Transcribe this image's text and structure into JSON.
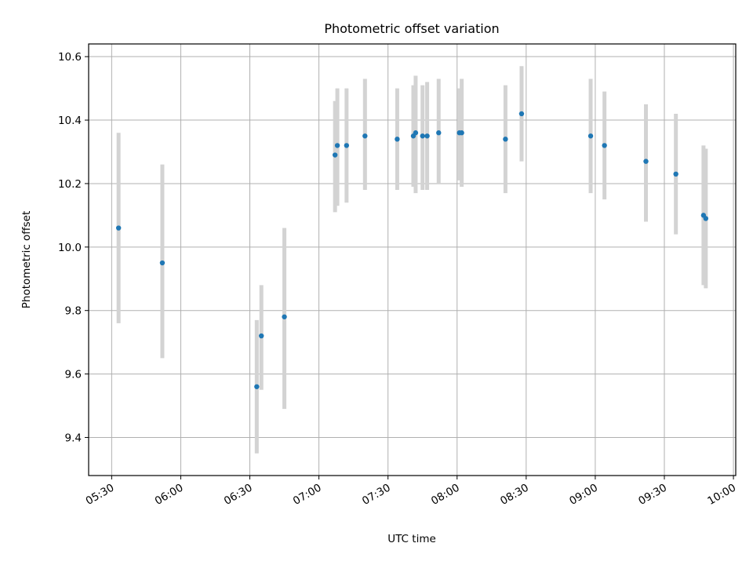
{
  "chart_data": {
    "type": "scatter",
    "title": "Photometric offset variation",
    "xlabel": "UTC time",
    "ylabel": "Photometric offset",
    "xlim": [
      "05:20",
      "10:01"
    ],
    "ylim": [
      9.28,
      10.64
    ],
    "x_ticks": [
      "05:30",
      "06:00",
      "06:30",
      "07:00",
      "07:30",
      "08:00",
      "08:30",
      "09:00",
      "09:30",
      "10:00"
    ],
    "y_ticks": [
      9.4,
      9.6,
      9.8,
      10.0,
      10.2,
      10.4,
      10.6
    ],
    "y_tick_labels": [
      "9.4",
      "9.6",
      "9.8",
      "10.0",
      "10.2",
      "10.4",
      "10.6"
    ],
    "grid": true,
    "colors": {
      "point": "#1f77b4",
      "error_bar": "#d3d3d3",
      "grid": "#b0b0b0"
    },
    "points": [
      {
        "time": "05:33",
        "y": 10.06,
        "yerr_low": 9.76,
        "yerr_high": 10.36
      },
      {
        "time": "05:52",
        "y": 9.95,
        "yerr_low": 9.65,
        "yerr_high": 10.26
      },
      {
        "time": "06:33",
        "y": 9.56,
        "yerr_low": 9.35,
        "yerr_high": 9.77
      },
      {
        "time": "06:35",
        "y": 9.72,
        "yerr_low": 9.55,
        "yerr_high": 9.88
      },
      {
        "time": "06:45",
        "y": 9.78,
        "yerr_low": 9.49,
        "yerr_high": 10.06
      },
      {
        "time": "07:07",
        "y": 10.29,
        "yerr_low": 10.11,
        "yerr_high": 10.46
      },
      {
        "time": "07:08",
        "y": 10.32,
        "yerr_low": 10.13,
        "yerr_high": 10.5
      },
      {
        "time": "07:12",
        "y": 10.32,
        "yerr_low": 10.14,
        "yerr_high": 10.5
      },
      {
        "time": "07:20",
        "y": 10.35,
        "yerr_low": 10.18,
        "yerr_high": 10.53
      },
      {
        "time": "07:34",
        "y": 10.34,
        "yerr_low": 10.18,
        "yerr_high": 10.5
      },
      {
        "time": "07:41",
        "y": 10.35,
        "yerr_low": 10.19,
        "yerr_high": 10.51
      },
      {
        "time": "07:42",
        "y": 10.36,
        "yerr_low": 10.17,
        "yerr_high": 10.54
      },
      {
        "time": "07:45",
        "y": 10.35,
        "yerr_low": 10.18,
        "yerr_high": 10.51
      },
      {
        "time": "07:47",
        "y": 10.35,
        "yerr_low": 10.18,
        "yerr_high": 10.52
      },
      {
        "time": "07:52",
        "y": 10.36,
        "yerr_low": 10.2,
        "yerr_high": 10.53
      },
      {
        "time": "08:01",
        "y": 10.36,
        "yerr_low": 10.21,
        "yerr_high": 10.5
      },
      {
        "time": "08:02",
        "y": 10.36,
        "yerr_low": 10.19,
        "yerr_high": 10.53
      },
      {
        "time": "08:21",
        "y": 10.34,
        "yerr_low": 10.17,
        "yerr_high": 10.51
      },
      {
        "time": "08:28",
        "y": 10.42,
        "yerr_low": 10.27,
        "yerr_high": 10.57
      },
      {
        "time": "08:58",
        "y": 10.35,
        "yerr_low": 10.17,
        "yerr_high": 10.53
      },
      {
        "time": "09:04",
        "y": 10.32,
        "yerr_low": 10.15,
        "yerr_high": 10.49
      },
      {
        "time": "09:22",
        "y": 10.27,
        "yerr_low": 10.08,
        "yerr_high": 10.45
      },
      {
        "time": "09:35",
        "y": 10.23,
        "yerr_low": 10.04,
        "yerr_high": 10.42
      },
      {
        "time": "09:47",
        "y": 10.1,
        "yerr_low": 9.88,
        "yerr_high": 10.32
      },
      {
        "time": "09:48",
        "y": 10.09,
        "yerr_low": 9.87,
        "yerr_high": 10.31
      }
    ]
  }
}
